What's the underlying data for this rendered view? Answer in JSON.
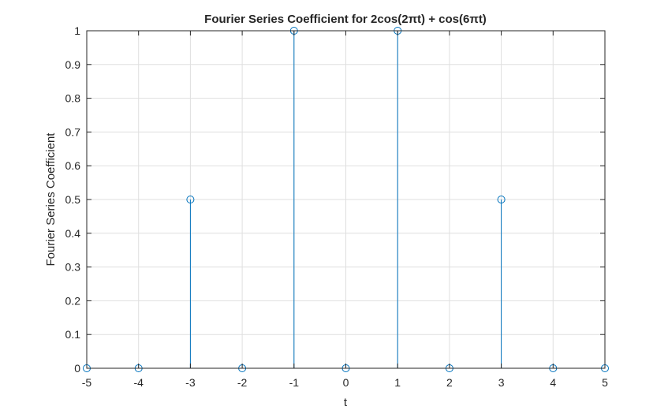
{
  "chart_data": {
    "type": "stem",
    "title": "Fourier Series Coefficient for 2cos(2πt) + cos(6πt)",
    "xlabel": "t",
    "ylabel": "Fourier Series Coefficient",
    "xlim": [
      -5,
      5
    ],
    "ylim": [
      0,
      1
    ],
    "x_ticks": [
      -5,
      -4,
      -3,
      -2,
      -1,
      0,
      1,
      2,
      3,
      4,
      5
    ],
    "x_tick_labels": [
      "-5",
      "-4",
      "-3",
      "-2",
      "-1",
      "0",
      "1",
      "2",
      "3",
      "4",
      "5"
    ],
    "y_ticks": [
      0,
      0.1,
      0.2,
      0.3,
      0.4,
      0.5,
      0.6,
      0.7,
      0.8,
      0.9,
      1
    ],
    "y_tick_labels": [
      "0",
      "0.1",
      "0.2",
      "0.3",
      "0.4",
      "0.5",
      "0.6",
      "0.7",
      "0.8",
      "0.9",
      "1"
    ],
    "grid": true,
    "marker": "circle",
    "color": "#0072bd",
    "x": [
      -5,
      -4,
      -3,
      -2,
      -1,
      0,
      1,
      2,
      3,
      4,
      5
    ],
    "y": [
      0,
      0,
      0.5,
      0,
      1,
      0,
      1,
      0,
      0.5,
      0,
      0
    ]
  }
}
